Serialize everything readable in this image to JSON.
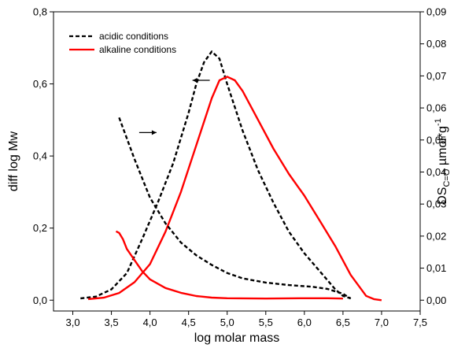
{
  "chart_data": {
    "type": "line",
    "x": {
      "label": "log molar mass",
      "range": [
        2.75,
        7.5
      ],
      "ticks": [
        "3,0",
        "3,5",
        "4,0",
        "4,5",
        "5,0",
        "5,5",
        "6,0",
        "6,5",
        "7,0",
        "7,5"
      ],
      "tick_values": [
        3.0,
        3.5,
        4.0,
        4.5,
        5.0,
        5.5,
        6.0,
        6.5,
        7.0,
        7.5
      ]
    },
    "y_left": {
      "label": "diff log Mw",
      "range": [
        -0.03,
        0.8
      ],
      "ticks": [
        "0,0",
        "0,2",
        "0,4",
        "0,6",
        "0,8"
      ],
      "tick_values": [
        0.0,
        0.2,
        0.4,
        0.6,
        0.8
      ]
    },
    "y_right": {
      "label_main": "DS",
      "label_sub": "C=O",
      "label_unit": " µmol*g",
      "label_sup": "-1",
      "range": [
        -0.003375,
        0.09
      ],
      "ticks": [
        "0,00",
        "0,01",
        "0,02",
        "0,03",
        "0,04",
        "0,05",
        "0,06",
        "0,07",
        "0,08",
        "0,09"
      ],
      "tick_values": [
        0.0,
        0.01,
        0.02,
        0.03,
        0.04,
        0.05,
        0.06,
        0.07,
        0.08,
        0.09
      ]
    },
    "legend": {
      "placement": "top-left",
      "entries": [
        {
          "label": "acidic conditions",
          "color": "#000000",
          "style": "dashed"
        },
        {
          "label": "alkaline conditions",
          "color": "#ff0000",
          "style": "solid"
        }
      ]
    },
    "series": [
      {
        "name": "acidic conditions",
        "axis": "left",
        "color": "#000000",
        "dash": true,
        "points": [
          [
            3.1,
            0.005
          ],
          [
            3.3,
            0.01
          ],
          [
            3.5,
            0.03
          ],
          [
            3.7,
            0.075
          ],
          [
            3.9,
            0.17
          ],
          [
            4.1,
            0.27
          ],
          [
            4.3,
            0.38
          ],
          [
            4.5,
            0.52
          ],
          [
            4.6,
            0.6
          ],
          [
            4.7,
            0.66
          ],
          [
            4.8,
            0.69
          ],
          [
            4.9,
            0.67
          ],
          [
            5.0,
            0.6
          ],
          [
            5.2,
            0.47
          ],
          [
            5.4,
            0.36
          ],
          [
            5.6,
            0.27
          ],
          [
            5.8,
            0.19
          ],
          [
            6.0,
            0.13
          ],
          [
            6.2,
            0.08
          ],
          [
            6.4,
            0.03
          ],
          [
            6.5,
            0.012
          ],
          [
            6.6,
            0.005
          ]
        ]
      },
      {
        "name": "alkaline conditions",
        "axis": "left",
        "color": "#ff0000",
        "dash": false,
        "points": [
          [
            3.2,
            0.003
          ],
          [
            3.4,
            0.007
          ],
          [
            3.6,
            0.02
          ],
          [
            3.8,
            0.05
          ],
          [
            4.0,
            0.1
          ],
          [
            4.2,
            0.19
          ],
          [
            4.4,
            0.3
          ],
          [
            4.6,
            0.43
          ],
          [
            4.8,
            0.56
          ],
          [
            4.9,
            0.61
          ],
          [
            5.0,
            0.62
          ],
          [
            5.1,
            0.61
          ],
          [
            5.2,
            0.58
          ],
          [
            5.4,
            0.5
          ],
          [
            5.6,
            0.42
          ],
          [
            5.8,
            0.35
          ],
          [
            6.0,
            0.29
          ],
          [
            6.2,
            0.22
          ],
          [
            6.4,
            0.15
          ],
          [
            6.6,
            0.07
          ],
          [
            6.8,
            0.012
          ],
          [
            6.9,
            0.003
          ],
          [
            7.0,
            0.0
          ]
        ]
      },
      {
        "name": "acidic conditions",
        "axis": "right",
        "color": "#000000",
        "dash": true,
        "points": [
          [
            3.6,
            0.057
          ],
          [
            3.8,
            0.044
          ],
          [
            4.0,
            0.032
          ],
          [
            4.2,
            0.024
          ],
          [
            4.4,
            0.018
          ],
          [
            4.6,
            0.014
          ],
          [
            4.8,
            0.011
          ],
          [
            5.0,
            0.0085
          ],
          [
            5.2,
            0.0068
          ],
          [
            5.5,
            0.0055
          ],
          [
            5.8,
            0.0047
          ],
          [
            6.1,
            0.0042
          ],
          [
            6.3,
            0.0035
          ],
          [
            6.5,
            0.002
          ],
          [
            6.6,
            0.0005
          ]
        ]
      },
      {
        "name": "alkaline conditions",
        "axis": "right",
        "color": "#ff0000",
        "dash": false,
        "points": [
          [
            3.56,
            0.0215
          ],
          [
            3.6,
            0.021
          ],
          [
            3.65,
            0.019
          ],
          [
            3.7,
            0.016
          ],
          [
            3.8,
            0.0125
          ],
          [
            3.9,
            0.009
          ],
          [
            4.0,
            0.0065
          ],
          [
            4.2,
            0.0038
          ],
          [
            4.4,
            0.0023
          ],
          [
            4.6,
            0.0013
          ],
          [
            4.8,
            0.0008
          ],
          [
            5.0,
            0.0006
          ],
          [
            5.5,
            0.0005
          ],
          [
            6.0,
            0.0006
          ],
          [
            6.3,
            0.0006
          ],
          [
            6.5,
            0.0005
          ]
        ]
      }
    ],
    "annotations": [
      {
        "type": "arrow",
        "direction": "left",
        "x": 4.55,
        "y": 0.61,
        "axis": "left"
      },
      {
        "type": "arrow",
        "direction": "right",
        "x": 3.86,
        "y": 0.465,
        "axis": "left"
      }
    ]
  }
}
